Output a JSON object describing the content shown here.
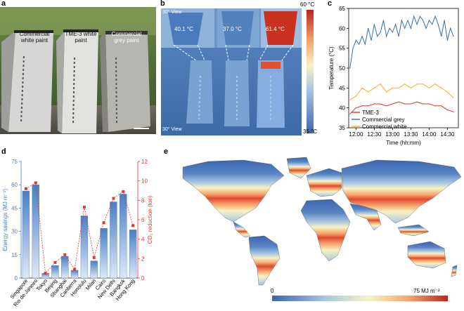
{
  "panels": {
    "a": {
      "label": "a",
      "buildings": [
        "Commercial white paint",
        "TME-3 white paint",
        "Commercial grey paint"
      ]
    },
    "b": {
      "label": "b",
      "view_top": "30° View",
      "view_bottom": "30° View",
      "temps": [
        "40.1 °C",
        "37.0 °C",
        "61.4 °C"
      ],
      "colorbar_max": "60 °C",
      "colorbar_min": "35 °C"
    },
    "c": {
      "label": "c"
    },
    "d": {
      "label": "d"
    },
    "e": {
      "label": "e"
    }
  },
  "chart_data": [
    {
      "id": "c",
      "type": "line",
      "xlabel": "Time (hh:mm)",
      "ylabel": "Temperature (°C)",
      "x_ticks": [
        "12:00",
        "12:30",
        "13:00",
        "13:30",
        "14:00",
        "14:30"
      ],
      "x_range_minutes": [
        -12,
        168
      ],
      "ylim": [
        35,
        65
      ],
      "y_ticks": [
        35,
        40,
        45,
        50,
        55,
        60,
        65
      ],
      "series": [
        {
          "name": "TME-3",
          "color": "#d23a2c",
          "x": [
            -10,
            0,
            10,
            20,
            30,
            40,
            50,
            60,
            70,
            80,
            90,
            100,
            110,
            120,
            130,
            140,
            150,
            160
          ],
          "values": [
            38.5,
            40,
            40.5,
            40.5,
            41,
            41,
            40.5,
            41,
            41.5,
            41,
            41,
            41.5,
            41,
            41,
            40.5,
            40.5,
            39.5,
            39
          ]
        },
        {
          "name": "Commercial grey",
          "color": "#3a6eb5",
          "x": [
            -10,
            -5,
            0,
            5,
            10,
            15,
            20,
            25,
            30,
            35,
            40,
            45,
            50,
            55,
            60,
            65,
            70,
            75,
            80,
            85,
            90,
            95,
            100,
            105,
            110,
            115,
            120,
            125,
            130,
            135,
            140,
            145,
            150,
            155,
            160
          ],
          "values": [
            50,
            55,
            57,
            56,
            58,
            56,
            60,
            57,
            61,
            58,
            59,
            62,
            58,
            60,
            59,
            61,
            58,
            62,
            60,
            62,
            60,
            63,
            61,
            63,
            62,
            60,
            62,
            61,
            63,
            61,
            58,
            62,
            57,
            60,
            58
          ]
        },
        {
          "name": "Commercial white",
          "color": "#f2b21a",
          "x": [
            -10,
            0,
            10,
            20,
            30,
            40,
            50,
            60,
            70,
            80,
            90,
            100,
            110,
            120,
            130,
            140,
            150,
            160
          ],
          "values": [
            42,
            43,
            45,
            44,
            45,
            46,
            44,
            45,
            45,
            46,
            45,
            46,
            46,
            45,
            46,
            45,
            44,
            42.5
          ]
        }
      ]
    },
    {
      "id": "d",
      "type": "bar",
      "ylabel_left": "Energy savings (MJ m⁻²)",
      "ylabel_right": "CO₂ reduction (ton)",
      "categories": [
        "Singapore",
        "Rio de Janeiro",
        "Tokyo",
        "Beijing",
        "Shanghai",
        "Canberra",
        "Honolulu",
        "Milan",
        "Cairo",
        "New Delhi",
        "Bangkok",
        "Hong Kong"
      ],
      "energy_savings": [
        56,
        60,
        3,
        8,
        14,
        5,
        40,
        11,
        32,
        49,
        54,
        31
      ],
      "co2_reduction": [
        9.2,
        9.8,
        0.5,
        1.6,
        2.4,
        0.9,
        7.3,
        2.1,
        5.7,
        8.2,
        8.9,
        5.4
      ],
      "ylim_left": [
        0,
        75
      ],
      "yticks_left": [
        0,
        15,
        30,
        45,
        60,
        75
      ],
      "ylim_right": [
        0,
        12
      ],
      "yticks_right": [
        0,
        2,
        4,
        6,
        8,
        10,
        12
      ],
      "bar_color": "#4a7ec4",
      "line_color": "#e03a2e"
    },
    {
      "id": "e",
      "type": "heatmap",
      "colorbar_min": "0",
      "colorbar_max": "75 MJ m⁻²",
      "colors": [
        "#3b64b0",
        "#a7c6e3",
        "#f7f2c4",
        "#f4a56c",
        "#d7301f"
      ]
    }
  ]
}
